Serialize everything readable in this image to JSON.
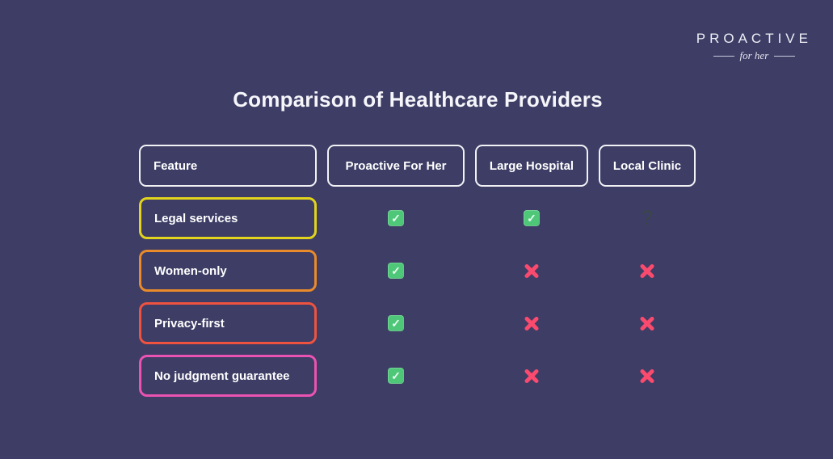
{
  "brand": {
    "name": "PROACTIVE",
    "tagline": "for her"
  },
  "title": "Comparison of Healthcare Providers",
  "table": {
    "headers": [
      {
        "label": "Feature"
      },
      {
        "label": "Proactive For Her"
      },
      {
        "label": "Large Hospital"
      },
      {
        "label": "Local Clinic"
      }
    ],
    "rows": [
      {
        "feature": "Legal services",
        "border_color": "#e2d31c",
        "cells": [
          "check",
          "check",
          "question"
        ]
      },
      {
        "feature": "Women-only",
        "border_color": "#e98a2b",
        "cells": [
          "check",
          "cross",
          "cross"
        ]
      },
      {
        "feature": "Privacy-first",
        "border_color": "#ef5340",
        "cells": [
          "check",
          "cross",
          "cross"
        ]
      },
      {
        "feature": "No judgment guarantee",
        "border_color": "#eb53b2",
        "cells": [
          "check",
          "cross",
          "cross"
        ]
      }
    ]
  },
  "colors": {
    "background": "#3d3d66",
    "header_border": "#f2f2f6",
    "check_green": "#4ec878",
    "cross_pink": "#fa4a6e",
    "question_gray": "#3c4746"
  }
}
